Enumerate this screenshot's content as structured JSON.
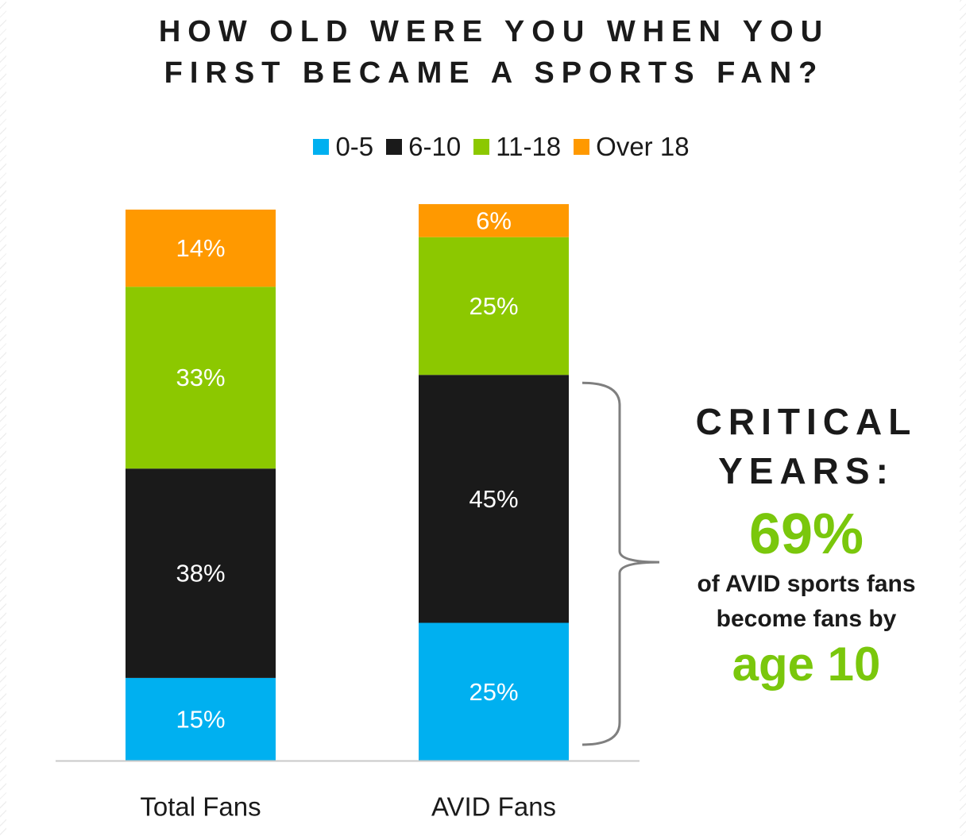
{
  "title_line1": "HOW OLD WERE YOU WHEN YOU",
  "title_line2": "FIRST BECAME A SPORTS FAN?",
  "legend": [
    {
      "label": "0-5",
      "color": "#00b0f0"
    },
    {
      "label": "6-10",
      "color": "#1a1a1a"
    },
    {
      "label": "11-18",
      "color": "#8cc800"
    },
    {
      "label": "Over 18",
      "color": "#ff9900"
    }
  ],
  "callout": {
    "heading_line1": "CRITICAL",
    "heading_line2": "YEARS:",
    "big_value": "69%",
    "text_line1": "of AVID sports fans",
    "text_line2": "become fans by",
    "age": "age 10",
    "accent_color": "#7ac70c"
  },
  "chart_data": {
    "type": "bar",
    "stacked": true,
    "categories": [
      "Total Fans",
      "AVID Fans"
    ],
    "series": [
      {
        "name": "0-5",
        "color": "#00b0f0",
        "values": [
          15,
          25
        ],
        "labels": [
          "15%",
          "25%"
        ]
      },
      {
        "name": "6-10",
        "color": "#1a1a1a",
        "values": [
          38,
          45
        ],
        "labels": [
          "38%",
          "45%"
        ]
      },
      {
        "name": "11-18",
        "color": "#8cc800",
        "values": [
          33,
          25
        ],
        "labels": [
          "33%",
          "25%"
        ]
      },
      {
        "name": "Over 18",
        "color": "#ff9900",
        "values": [
          14,
          6
        ],
        "labels": [
          "14%",
          "6%"
        ]
      }
    ],
    "ylim": [
      0,
      100
    ],
    "grid": false,
    "legend_position": "top"
  }
}
